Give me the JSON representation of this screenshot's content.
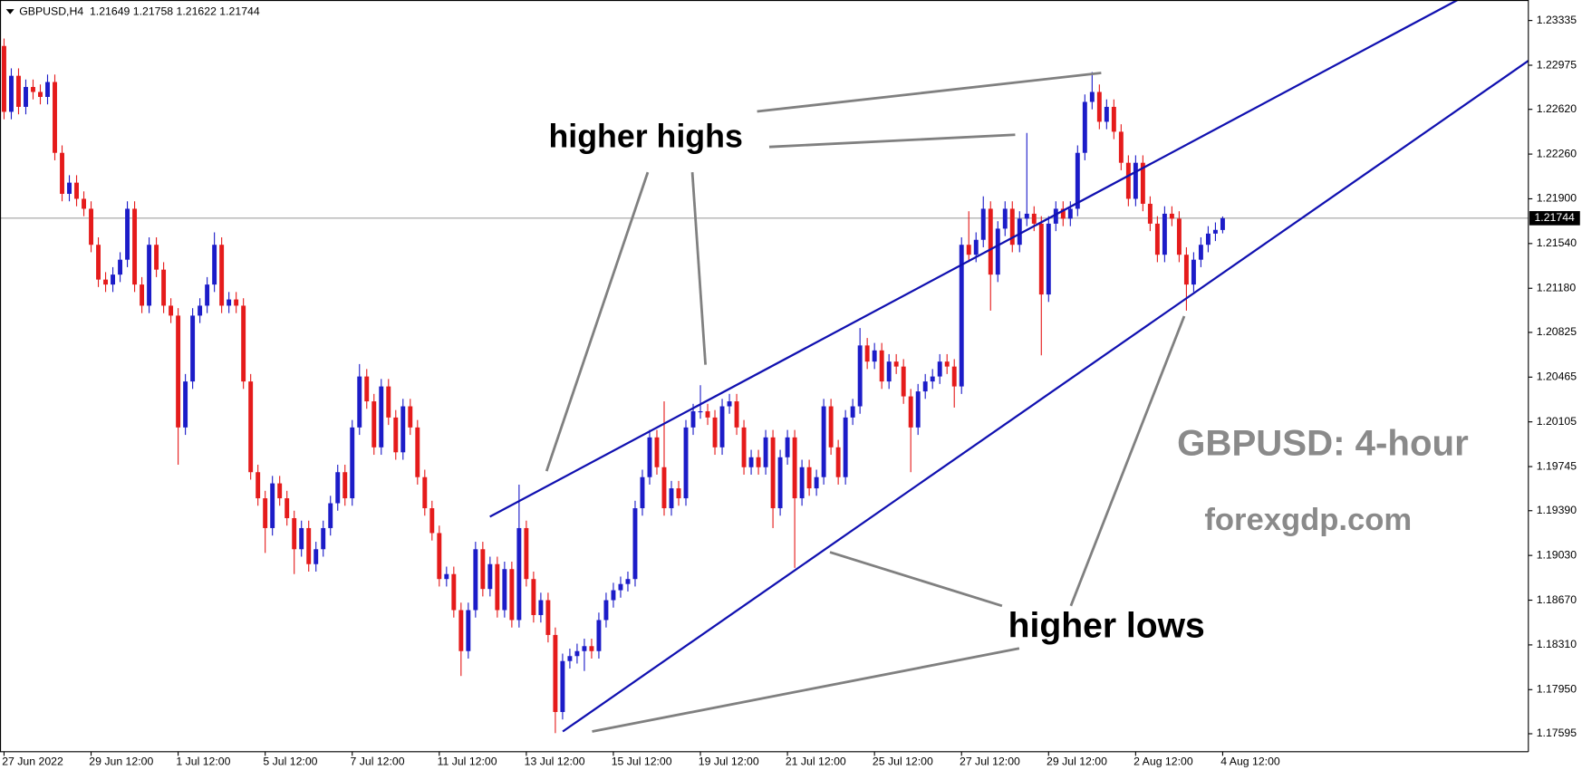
{
  "chart_data": {
    "type": "candlestick",
    "title": "GBPUSD,H4  1.21649 1.21758 1.21622 1.21744",
    "annotations": [
      "higher highs",
      "higher lows",
      "GBPUSD: 4-hour",
      "forexgdp.com"
    ],
    "up_color": "#1c1cc8",
    "down_color": "#e51b1b",
    "current_price": 1.21744,
    "ylim": [
      1.1745,
      1.235
    ],
    "yticks": [
      1.23335,
      1.22975,
      {
        "value": 1.2262,
        "label": "1.22620"
      },
      {
        "value": 1.2226,
        "label": "1.22260"
      },
      {
        "value": 1.219,
        "label": "1.21900"
      },
      {
        "value": 1.2154,
        "label": "1.21540"
      },
      {
        "value": 1.2118,
        "label": "1.21180"
      },
      1.20825,
      1.20465,
      1.20105,
      1.19745,
      {
        "value": 1.1939,
        "label": "1.19390"
      },
      {
        "value": 1.1903,
        "label": "1.19030"
      },
      {
        "value": 1.1867,
        "label": "1.18670"
      },
      {
        "value": 1.1831,
        "label": "1.18310"
      },
      {
        "value": 1.1795,
        "label": "1.17950"
      },
      1.17595
    ],
    "categories": [
      "27 Jun 2022",
      null,
      null,
      null,
      null,
      null,
      null,
      null,
      null,
      null,
      null,
      null,
      "29 Jun 12:00",
      null,
      null,
      null,
      null,
      null,
      null,
      null,
      null,
      null,
      null,
      null,
      "1 Jul 12:00",
      null,
      null,
      null,
      null,
      null,
      null,
      null,
      null,
      null,
      null,
      null,
      "5 Jul 12:00",
      null,
      null,
      null,
      null,
      null,
      null,
      null,
      null,
      null,
      null,
      null,
      "7 Jul 12:00",
      null,
      null,
      null,
      null,
      null,
      null,
      null,
      null,
      null,
      null,
      null,
      "11 Jul 12:00",
      null,
      null,
      null,
      null,
      null,
      null,
      null,
      null,
      null,
      null,
      null,
      "13 Jul 12:00",
      null,
      null,
      null,
      null,
      null,
      null,
      null,
      null,
      null,
      null,
      null,
      "15 Jul 12:00",
      null,
      null,
      null,
      null,
      null,
      null,
      null,
      null,
      null,
      null,
      null,
      "19 Jul 12:00",
      null,
      null,
      null,
      null,
      null,
      null,
      null,
      null,
      null,
      null,
      null,
      "21 Jul 12:00",
      null,
      null,
      null,
      null,
      null,
      null,
      null,
      null,
      null,
      null,
      null,
      "25 Jul 12:00",
      null,
      null,
      null,
      null,
      null,
      null,
      null,
      null,
      null,
      null,
      null,
      "27 Jul 12:00",
      null,
      null,
      null,
      null,
      null,
      null,
      null,
      null,
      null,
      null,
      null,
      "29 Jul 12:00",
      null,
      null,
      null,
      null,
      null,
      null,
      null,
      null,
      null,
      null,
      null,
      "2 Aug 12:00",
      null,
      null,
      null,
      null,
      null,
      null,
      null,
      null,
      null,
      null,
      null,
      "4 Aug 12:00"
    ],
    "open": [
      1.2313,
      1.226,
      1.2289,
      1.2264,
      1.228,
      1.2276,
      1.2272,
      1.2284,
      1.2227,
      1.2194,
      1.2203,
      1.219,
      1.2182,
      1.2153,
      1.2125,
      1.2121,
      1.2129,
      1.2141,
      1.2182,
      1.2121,
      1.2104,
      1.2153,
      1.2133,
      1.2104,
      1.2096,
      1.2006,
      1.2043,
      1.2096,
      1.2104,
      1.2121,
      1.2153,
      1.2104,
      1.2109,
      1.2104,
      1.2043,
      1.197,
      1.1949,
      1.1925,
      1.1961,
      1.1949,
      1.1933,
      1.1908,
      1.1925,
      1.1896,
      1.1908,
      1.1925,
      1.1945,
      1.197,
      1.1949,
      1.2006,
      1.2047,
      1.2027,
      1.199,
      1.2039,
      1.2014,
      1.1986,
      1.2023,
      1.2006,
      1.1966,
      1.1941,
      1.1921,
      1.1884,
      1.1888,
      1.1859,
      1.1826,
      1.1859,
      1.1908,
      1.1876,
      1.1896,
      1.1859,
      1.1892,
      1.1851,
      1.1925,
      1.1884,
      1.1855,
      1.1867,
      1.1839,
      1.1777,
      1.1818,
      1.1822,
      1.1826,
      1.183,
      1.1826,
      1.1851,
      1.1867,
      1.1875,
      1.188,
      1.1884,
      1.1941,
      1.1966,
      1.1998,
      1.1974,
      1.1941,
      1.1957,
      1.1949,
      1.2006,
      1.2019,
      1.2019,
      1.2014,
      1.199,
      1.2023,
      1.2027,
      1.2006,
      1.1974,
      1.1982,
      1.1974,
      1.1998,
      1.1941,
      1.1982,
      1.1998,
      1.1949,
      1.1974,
      1.1957,
      1.1966,
      1.2023,
      1.199,
      1.1966,
      1.2014,
      1.2023,
      1.2072,
      1.2059,
      1.2068,
      1.2043,
      1.2059,
      1.2055,
      1.2031,
      1.2006,
      1.2035,
      1.2043,
      1.2047,
      1.2059,
      1.2055,
      1.2039,
      1.2153,
      1.2145,
      1.2157,
      1.2182,
      1.2129,
      1.2166,
      1.2182,
      1.2153,
      1.2174,
      1.2178,
      1.217,
      1.2113,
      1.217,
      1.2182,
      1.2174,
      1.2182,
      1.2227,
      1.2268,
      1.2276,
      1.2252,
      1.2264,
      1.2244,
      1.2219,
      1.219,
      1.2219,
      1.2186,
      1.217,
      1.2145,
      1.2178,
      1.2174,
      1.2145,
      1.2121,
      1.2141,
      1.2153,
      1.2162,
      1.21649
    ],
    "high": [
      1.2319,
      1.2295,
      1.2295,
      1.2286,
      1.2286,
      1.2282,
      1.229,
      1.229,
      1.2233,
      1.2209,
      1.2209,
      1.2196,
      1.2188,
      1.2159,
      1.2131,
      1.2135,
      1.2147,
      1.2188,
      1.2188,
      1.2127,
      1.2159,
      1.2159,
      1.2139,
      1.211,
      1.2102,
      1.2049,
      1.2102,
      1.211,
      1.2127,
      1.2163,
      1.2159,
      1.2115,
      1.2115,
      1.211,
      1.2049,
      1.1976,
      1.1955,
      1.1967,
      1.1967,
      1.1955,
      1.1939,
      1.1931,
      1.1931,
      1.1914,
      1.1931,
      1.1951,
      1.1976,
      1.1976,
      1.2012,
      1.2057,
      1.2053,
      1.2033,
      1.2045,
      1.2045,
      1.202,
      1.2029,
      1.2029,
      1.2012,
      1.1972,
      1.1947,
      1.1927,
      1.1894,
      1.1894,
      1.1865,
      1.1865,
      1.1914,
      1.1914,
      1.1902,
      1.1902,
      1.1898,
      1.1898,
      1.196,
      1.1931,
      1.189,
      1.1873,
      1.1873,
      1.1845,
      1.1824,
      1.1828,
      1.1832,
      1.1836,
      1.1836,
      1.1857,
      1.1873,
      1.1881,
      1.1886,
      1.189,
      1.1947,
      1.1972,
      1.2004,
      1.2004,
      1.2027,
      1.1963,
      1.1963,
      1.2012,
      1.2025,
      1.204,
      1.2025,
      1.202,
      1.2029,
      1.2033,
      1.2033,
      1.2012,
      1.1988,
      1.1988,
      1.2004,
      1.2004,
      1.1988,
      1.2004,
      1.2004,
      1.198,
      1.198,
      1.1972,
      1.2029,
      1.2029,
      1.1996,
      1.202,
      1.2029,
      1.2086,
      1.2078,
      1.2074,
      1.2074,
      1.2065,
      1.2065,
      1.2061,
      1.2037,
      1.2041,
      1.2049,
      1.2053,
      1.2065,
      1.2065,
      1.2061,
      1.2159,
      1.218,
      1.2163,
      1.2192,
      1.2188,
      1.2172,
      1.2188,
      1.2188,
      1.218,
      1.2243,
      1.2184,
      1.2176,
      1.2176,
      1.2188,
      1.2188,
      1.2188,
      1.2233,
      1.2274,
      1.2292,
      1.2282,
      1.227,
      1.227,
      1.225,
      1.2225,
      1.2225,
      1.2225,
      1.2192,
      1.2176,
      1.2184,
      1.2184,
      1.218,
      1.2151,
      1.2147,
      1.2159,
      1.2168,
      1.2171,
      1.21758
    ],
    "low": [
      1.2254,
      1.2254,
      1.2258,
      1.2258,
      1.227,
      1.2266,
      1.2266,
      1.2221,
      1.2188,
      1.2188,
      1.2184,
      1.2176,
      1.2147,
      1.2119,
      1.2115,
      1.2115,
      1.2123,
      1.2135,
      1.2115,
      1.2098,
      1.2098,
      1.2127,
      1.2098,
      1.209,
      1.1976,
      1.2,
      1.2037,
      1.209,
      1.2098,
      1.2115,
      1.2098,
      1.2098,
      1.2098,
      1.2037,
      1.1964,
      1.1943,
      1.1905,
      1.1919,
      1.1943,
      1.1927,
      1.1888,
      1.1902,
      1.189,
      1.189,
      1.1902,
      1.1919,
      1.1939,
      1.1943,
      1.1943,
      1.2,
      1.2021,
      1.1984,
      1.1984,
      1.2008,
      1.198,
      1.198,
      1.2,
      1.196,
      1.1935,
      1.1915,
      1.1878,
      1.1878,
      1.1853,
      1.1806,
      1.182,
      1.1853,
      1.187,
      1.187,
      1.1853,
      1.1853,
      1.1845,
      1.1845,
      1.1878,
      1.1849,
      1.1849,
      1.1833,
      1.176,
      1.1771,
      1.1812,
      1.1816,
      1.181,
      1.182,
      1.182,
      1.1845,
      1.1861,
      1.1869,
      1.1874,
      1.1878,
      1.1935,
      1.196,
      1.1968,
      1.1935,
      1.1935,
      1.1943,
      1.1943,
      1.2,
      1.2013,
      1.2008,
      1.1984,
      1.1984,
      1.2017,
      1.2,
      1.1968,
      1.1968,
      1.1968,
      1.1968,
      1.1925,
      1.1935,
      1.1976,
      1.1893,
      1.1943,
      1.1951,
      1.1951,
      1.196,
      1.1984,
      1.196,
      1.196,
      1.2008,
      1.2017,
      1.2053,
      1.2053,
      1.2037,
      1.2037,
      1.2049,
      1.2025,
      1.197,
      1.2,
      1.2029,
      1.2037,
      1.2041,
      1.2049,
      1.2022,
      1.2033,
      1.2139,
      1.2139,
      1.2151,
      1.21,
      1.2123,
      1.216,
      1.2147,
      1.2147,
      1.2168,
      1.2164,
      1.2064,
      1.2107,
      1.2164,
      1.2168,
      1.2168,
      1.2176,
      1.2221,
      1.2262,
      1.2246,
      1.2246,
      1.2238,
      1.2213,
      1.2184,
      1.2184,
      1.218,
      1.2164,
      1.2139,
      1.2139,
      1.2168,
      1.2139,
      1.21,
      1.2115,
      1.2135,
      1.2147,
      1.2156,
      1.21622
    ],
    "close": [
      1.226,
      1.2289,
      1.2264,
      1.228,
      1.2276,
      1.2272,
      1.2284,
      1.2227,
      1.2194,
      1.2203,
      1.219,
      1.2182,
      1.2153,
      1.2125,
      1.2121,
      1.2129,
      1.2141,
      1.2182,
      1.2121,
      1.2104,
      1.2153,
      1.2133,
      1.2104,
      1.2096,
      1.2006,
      1.2043,
      1.2096,
      1.2104,
      1.2121,
      1.2153,
      1.2104,
      1.2109,
      1.2104,
      1.2043,
      1.197,
      1.1949,
      1.1925,
      1.1961,
      1.1949,
      1.1933,
      1.1908,
      1.1925,
      1.1896,
      1.1908,
      1.1925,
      1.1945,
      1.197,
      1.1949,
      1.2006,
      1.2047,
      1.2027,
      1.199,
      1.2039,
      1.2014,
      1.1986,
      1.2023,
      1.2006,
      1.1966,
      1.1941,
      1.1921,
      1.1884,
      1.1888,
      1.1859,
      1.1826,
      1.1859,
      1.1908,
      1.1876,
      1.1896,
      1.1859,
      1.1892,
      1.1851,
      1.1925,
      1.1884,
      1.1855,
      1.1867,
      1.1839,
      1.1777,
      1.1818,
      1.1822,
      1.1826,
      1.183,
      1.1826,
      1.1851,
      1.1867,
      1.1875,
      1.188,
      1.1884,
      1.1941,
      1.1966,
      1.1998,
      1.1974,
      1.1941,
      1.1957,
      1.1949,
      1.2006,
      1.2019,
      1.2019,
      1.2014,
      1.199,
      1.2023,
      1.2027,
      1.2006,
      1.1974,
      1.1982,
      1.1974,
      1.1998,
      1.1941,
      1.1982,
      1.1998,
      1.1949,
      1.1974,
      1.1957,
      1.1966,
      1.2023,
      1.199,
      1.1966,
      1.2014,
      1.2023,
      1.2072,
      1.2059,
      1.2068,
      1.2043,
      1.2059,
      1.2055,
      1.2031,
      1.2006,
      1.2035,
      1.2043,
      1.2047,
      1.2059,
      1.2055,
      1.2039,
      1.2153,
      1.2145,
      1.2157,
      1.2182,
      1.2129,
      1.2166,
      1.2182,
      1.2153,
      1.2174,
      1.2178,
      1.217,
      1.2113,
      1.217,
      1.2182,
      1.2174,
      1.2182,
      1.2227,
      1.2268,
      1.2276,
      1.2252,
      1.2264,
      1.2244,
      1.2219,
      1.219,
      1.2219,
      1.2186,
      1.217,
      1.2145,
      1.2178,
      1.2174,
      1.2145,
      1.2121,
      1.2141,
      1.2153,
      1.2162,
      1.2165,
      1.21744
    ]
  }
}
